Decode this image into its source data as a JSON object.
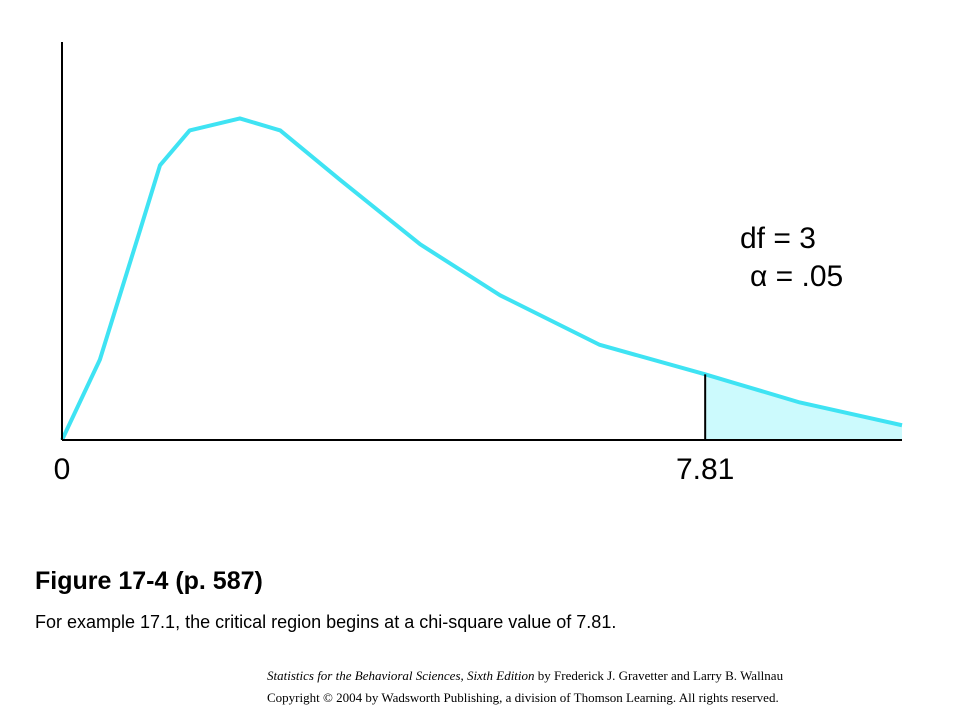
{
  "chart_data": {
    "type": "line",
    "x": [
      0,
      0.46,
      0.95,
      1.19,
      1.55,
      2.16,
      2.65,
      3.38,
      4.35,
      5.32,
      6.53,
      7.81,
      8.96,
      10.2
    ],
    "series": [
      {
        "color": "#3fe3f3",
        "values": [
          0,
          0.06,
          0.157,
          0.205,
          0.231,
          0.24,
          0.231,
          0.194,
          0.146,
          0.108,
          0.071,
          0.049,
          0.028,
          0.011
        ]
      }
    ],
    "xlim": [
      0,
      10.2
    ],
    "ylim": [
      0,
      0.3
    ],
    "xticks": [
      0,
      7.81
    ],
    "critical_value": 7.81,
    "critical_color": "#ccfafd",
    "annotations": [
      "df = 3",
      "α = .05"
    ]
  },
  "caption": {
    "title": "Figure 17-4  (p. 587)",
    "text": "For example 17.1, the critical region begins at a chi-square value of 7.81."
  },
  "credit": {
    "book": "Statistics for the Behavioral Sciences, Sixth Edition",
    "authors": " by Frederick J. Gravetter and Larry B. Wallnau",
    "copyright": "Copyright © 2004 by Wadsworth Publishing, a division of Thomson Learning.  All rights reserved."
  }
}
